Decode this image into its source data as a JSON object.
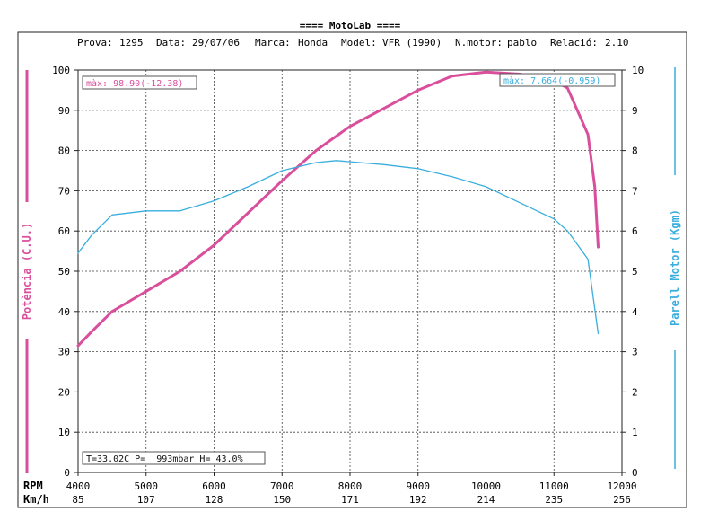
{
  "chart_data": {
    "type": "line",
    "title": "==== MotoLab ====",
    "info": {
      "prova_label": "Prova:",
      "prova": "1295",
      "data_label": "Data:",
      "data": "29/07/06",
      "marca_label": "Marca:",
      "marca": "Honda",
      "model_label": "Model:",
      "model": "VFR (1990)",
      "nmotor_label": "N.motor:",
      "nmotor": "pablo",
      "relacio_label": "Relació:",
      "relacio": "2.10"
    },
    "xlabel": "RPM",
    "x2label": "Km/h",
    "ylabel": "Potència (C.U.)",
    "y2label": "Parell Motor (Kgm)",
    "xlim": [
      4000,
      12000
    ],
    "ylim": [
      0,
      100
    ],
    "y2lim": [
      0,
      10
    ],
    "grid": true,
    "x_ticks": [
      "4000",
      "5000",
      "6000",
      "7000",
      "8000",
      "9000",
      "10000",
      "11000",
      "12000"
    ],
    "x2_ticks": [
      "85",
      "107",
      "128",
      "150",
      "171",
      "192",
      "214",
      "235",
      "256"
    ],
    "y_ticks": [
      "0",
      "10",
      "20",
      "30",
      "40",
      "50",
      "60",
      "70",
      "80",
      "90",
      "100"
    ],
    "y2_ticks": [
      "0",
      "1",
      "2",
      "3",
      "4",
      "5",
      "6",
      "7",
      "8",
      "9",
      "10"
    ],
    "series": [
      {
        "axis": "left",
        "color": "#d94f9c",
        "x": [
          4000,
          4200,
          4500,
          5000,
          5500,
          6000,
          6500,
          7000,
          7500,
          8000,
          8500,
          9000,
          9500,
          10000,
          10500,
          11000,
          11200,
          11500,
          11600,
          11650
        ],
        "y": [
          31.5,
          35.0,
          40.0,
          45.0,
          50.0,
          56.5,
          64.5,
          72.5,
          80.0,
          86.0,
          90.5,
          95.0,
          98.5,
          99.5,
          99.0,
          97.5,
          95.5,
          84.0,
          71.0,
          56.0
        ]
      },
      {
        "axis": "right",
        "color": "#3aaedc",
        "x": [
          4000,
          4200,
          4500,
          5000,
          5500,
          6000,
          6500,
          7000,
          7500,
          7800,
          8000,
          8500,
          9000,
          9500,
          10000,
          10500,
          11000,
          11200,
          11500,
          11650
        ],
        "y": [
          5.45,
          5.9,
          6.4,
          6.5,
          6.5,
          6.75,
          7.1,
          7.5,
          7.7,
          7.75,
          7.72,
          7.65,
          7.55,
          7.35,
          7.1,
          6.7,
          6.3,
          6.0,
          5.3,
          3.45
        ]
      }
    ],
    "max_power_label": "màx: 98.90(-12.38)",
    "max_torque_label": "màx: 7.664(-0.959)",
    "conditions_label": "T=33.02C P=  993mbar H= 43.0%"
  }
}
